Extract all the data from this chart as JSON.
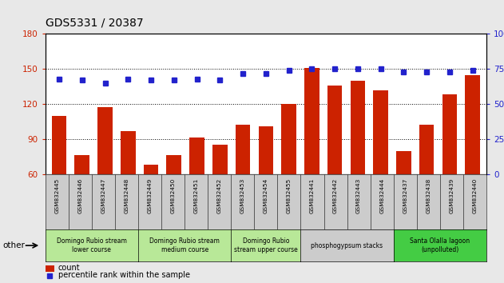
{
  "title": "GDS5331 / 20387",
  "samples": [
    "GSM832445",
    "GSM832446",
    "GSM832447",
    "GSM832448",
    "GSM832449",
    "GSM832450",
    "GSM832451",
    "GSM832452",
    "GSM832453",
    "GSM832454",
    "GSM832455",
    "GSM832441",
    "GSM832442",
    "GSM832443",
    "GSM832444",
    "GSM832437",
    "GSM832438",
    "GSM832439",
    "GSM832440"
  ],
  "counts": [
    110,
    76,
    117,
    97,
    68,
    76,
    91,
    85,
    102,
    101,
    120,
    151,
    136,
    140,
    132,
    80,
    102,
    128,
    145
  ],
  "percentiles": [
    68,
    67,
    65,
    68,
    67,
    67,
    68,
    67,
    72,
    72,
    74,
    75,
    75,
    75,
    75,
    73,
    73,
    73,
    74
  ],
  "bar_color": "#cc2200",
  "dot_color": "#2222cc",
  "ylim_left": [
    60,
    180
  ],
  "ylim_right": [
    0,
    100
  ],
  "yticks_left": [
    60,
    90,
    120,
    150,
    180
  ],
  "yticks_right": [
    0,
    25,
    50,
    75,
    100
  ],
  "groups": [
    {
      "label": "Domingo Rubio stream\nlower course",
      "start": 0,
      "end": 4,
      "color": "#b8e898"
    },
    {
      "label": "Domingo Rubio stream\nmedium course",
      "start": 4,
      "end": 8,
      "color": "#b8e898"
    },
    {
      "label": "Domingo Rubio\nstream upper course",
      "start": 8,
      "end": 11,
      "color": "#b8e898"
    },
    {
      "label": "phosphogypsum stacks",
      "start": 11,
      "end": 15,
      "color": "#cccccc"
    },
    {
      "label": "Santa Olalla lagoon\n(unpolluted)",
      "start": 15,
      "end": 19,
      "color": "#44cc44"
    }
  ],
  "other_label": "other",
  "legend_count_label": "count",
  "legend_pct_label": "percentile rank within the sample",
  "bg_color": "#e8e8e8",
  "plot_bg": "#ffffff",
  "tick_label_bg": "#cccccc",
  "bar_width": 0.65
}
